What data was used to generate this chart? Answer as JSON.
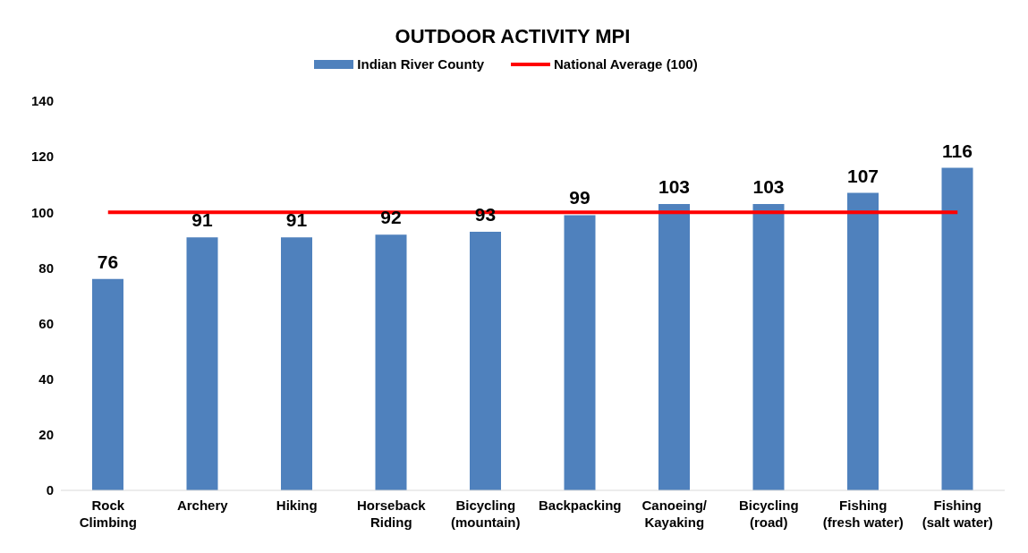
{
  "chart_data": {
    "type": "bar",
    "title": "OUTDOOR ACTIVITY MPI",
    "categories": [
      "Rock\nClimbing",
      "Archery",
      "Hiking",
      "Horseback\nRiding",
      "Bicycling\n(mountain)",
      "Backpacking",
      "Canoeing/\nKayaking",
      "Bicycling\n(road)",
      "Fishing\n(fresh water)",
      "Fishing\n(salt water)"
    ],
    "series": [
      {
        "name": "Indian River County",
        "color": "#4f81bd",
        "values": [
          76,
          91,
          91,
          92,
          93,
          99,
          103,
          103,
          107,
          116
        ],
        "value_labels": [
          "76",
          "91",
          "91",
          "92",
          "93",
          "99",
          "103",
          "103",
          "107",
          "116"
        ]
      },
      {
        "name": "National Average (100)",
        "type": "line",
        "color": "#ff0000",
        "values": [
          100,
          100,
          100,
          100,
          100,
          100,
          100,
          100,
          100,
          100
        ]
      }
    ],
    "ylim": [
      0,
      140
    ],
    "yticks": [
      0,
      20,
      40,
      60,
      80,
      100,
      120,
      140
    ],
    "grid": false,
    "legend": "top",
    "marker": "none"
  }
}
